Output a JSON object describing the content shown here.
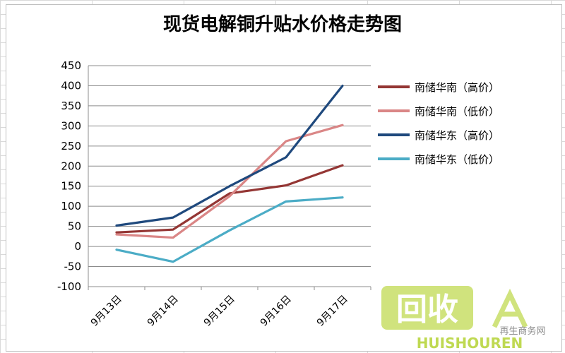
{
  "chart_data": {
    "type": "line",
    "title": "现货电解铜升贴水价格走势图",
    "categories": [
      "9月13日",
      "9月14日",
      "9月15日",
      "9月16日",
      "9月17日"
    ],
    "ylim": [
      -100,
      450
    ],
    "yticks": [
      450,
      400,
      350,
      300,
      250,
      200,
      150,
      100,
      50,
      0,
      -50,
      -100
    ],
    "grid": true,
    "legend_position": "right",
    "series": [
      {
        "name": "南储华南（高价）",
        "color": "#943634",
        "values": [
          35,
          42,
          132,
          152,
          202
        ]
      },
      {
        "name": "南储华南（低价）",
        "color": "#da8686",
        "values": [
          30,
          22,
          125,
          262,
          302
        ]
      },
      {
        "name": "南储华东（高价）",
        "color": "#1f497d",
        "values": [
          52,
          72,
          150,
          222,
          400
        ]
      },
      {
        "name": "南储华东（低价）",
        "color": "#4bacc6",
        "values": [
          -8,
          -38,
          40,
          112,
          122
        ]
      }
    ]
  },
  "watermark": {
    "big": "回收",
    "brand": "HUISHOUREN",
    "site": "再生商务网"
  }
}
